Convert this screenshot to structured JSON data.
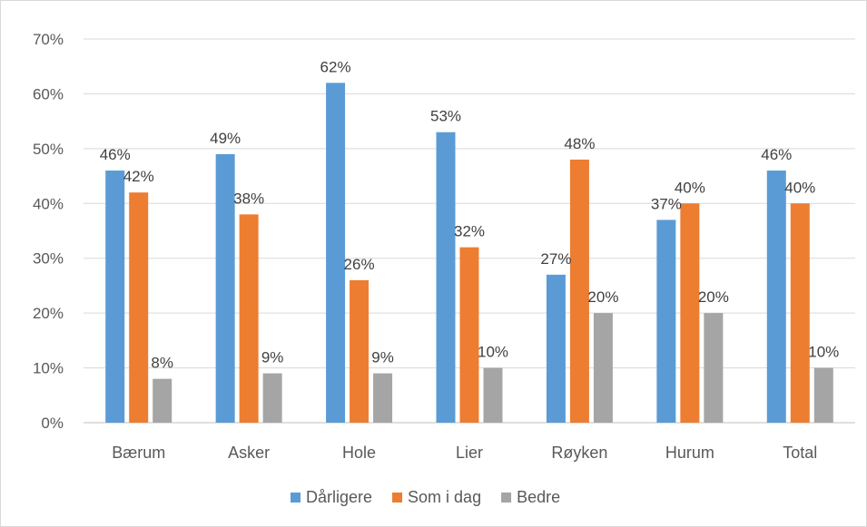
{
  "chart_data": {
    "type": "bar",
    "categories": [
      "Bærum",
      "Asker",
      "Hole",
      "Lier",
      "Røyken",
      "Hurum",
      "Total"
    ],
    "series": [
      {
        "name": "Dårligere",
        "color": "#5b9bd5",
        "values": [
          0.46,
          0.49,
          0.62,
          0.53,
          0.27,
          0.37,
          0.46
        ],
        "labels": [
          "46%",
          "49%",
          "62%",
          "53%",
          "27%",
          "37%",
          "46%"
        ]
      },
      {
        "name": "Som i dag",
        "color": "#ed7d31",
        "values": [
          0.42,
          0.38,
          0.26,
          0.32,
          0.48,
          0.4,
          0.4
        ],
        "labels": [
          "42%",
          "38%",
          "26%",
          "32%",
          "48%",
          "40%",
          "40%"
        ]
      },
      {
        "name": "Bedre",
        "color": "#a5a5a5",
        "values": [
          0.08,
          0.09,
          0.09,
          0.1,
          0.2,
          0.2,
          0.1
        ],
        "labels": [
          "8%",
          "9%",
          "9%",
          "10%",
          "20%",
          "20%",
          "10%"
        ]
      }
    ],
    "yticks": [
      "0%",
      "10%",
      "20%",
      "30%",
      "40%",
      "50%",
      "60%",
      "70%"
    ],
    "ylim": [
      0,
      0.7
    ],
    "grid": true,
    "legend_position": "bottom",
    "title": "",
    "xlabel": "",
    "ylabel": ""
  }
}
